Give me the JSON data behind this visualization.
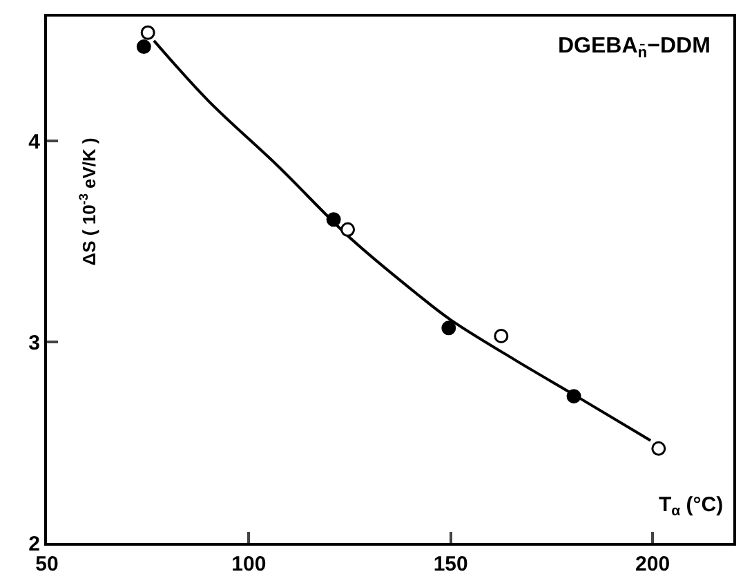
{
  "chart_data": {
    "type": "scatter",
    "title": "DGEBA$_{n̄}$−DDM",
    "xlabel": "T$_{α}$ (°C)",
    "ylabel": "ΔS ( 10$^{-3}$ eV/K )",
    "xlim": [
      50,
      220
    ],
    "xticks": [
      50,
      100,
      150,
      200
    ],
    "ylim": [
      2,
      4.62
    ],
    "yticks": [
      2,
      3,
      4
    ],
    "marker": "circle",
    "series": [
      {
        "type": "line",
        "color": "#000000",
        "marker": "none",
        "x": [
          76.5,
          90,
          107,
          125,
          141,
          150,
          166,
          182,
          199.5
        ],
        "values": [
          4.5,
          4.2,
          3.88,
          3.52,
          3.25,
          3.11,
          2.91,
          2.72,
          2.51
        ]
      },
      {
        "color": "#000000",
        "x": [
          74,
          121,
          149.5,
          180.5
        ],
        "values": [
          4.47,
          3.61,
          3.07,
          2.73
        ]
      },
      {
        "color": "#ffffff",
        "x": [
          75,
          124.5,
          162.5,
          201.5
        ],
        "values": [
          4.54,
          3.56,
          3.03,
          2.47
        ]
      }
    ]
  }
}
